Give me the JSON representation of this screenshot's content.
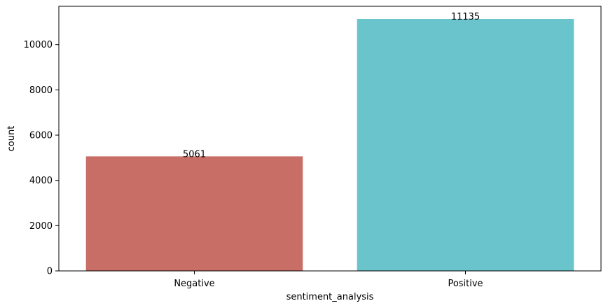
{
  "chart_data": {
    "type": "bar",
    "categories": [
      "Negative",
      "Positive"
    ],
    "values": [
      5061,
      11135
    ],
    "data_labels": [
      "5061",
      "11135"
    ],
    "colors": [
      "#c96e66",
      "#69c5cb"
    ],
    "title": "",
    "xlabel": "sentiment_analysis",
    "ylabel": "count",
    "ylim": [
      0,
      11692
    ],
    "yticks": [
      0,
      2000,
      4000,
      6000,
      8000,
      10000
    ],
    "grid": false,
    "legend": "none"
  }
}
